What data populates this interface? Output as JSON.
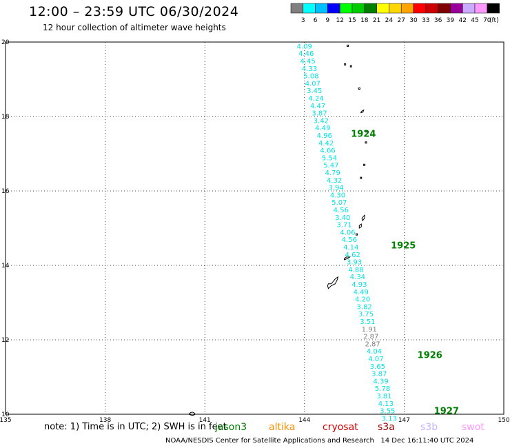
{
  "header": {
    "title": "12:00 – 23:59 UTC 06/30/2024",
    "subtitle": "12 hour collection of altimeter wave heights"
  },
  "colorbar": {
    "unit": "(ft)",
    "levels": [
      "3",
      "6",
      "9",
      "12",
      "15",
      "18",
      "21",
      "24",
      "27",
      "30",
      "33",
      "36",
      "39",
      "42",
      "45",
      "70"
    ],
    "colors": [
      "#808080",
      "#00ffff",
      "#00bfff",
      "#0000ff",
      "#00ff00",
      "#00cc00",
      "#008000",
      "#ffff00",
      "#ffd700",
      "#ffa500",
      "#ff0000",
      "#cc0000",
      "#800000",
      "#990099",
      "#ccaaff",
      "#ff99ff",
      "#000000"
    ]
  },
  "map": {
    "lon_ticks": [
      "135",
      "138",
      "141",
      "144",
      "147",
      "150"
    ],
    "lat_ticks": [
      "20",
      "18",
      "16",
      "14",
      "12",
      "10"
    ],
    "lon_range": [
      135,
      150
    ],
    "lat_range": [
      10,
      20
    ],
    "grid": "dotted"
  },
  "track": {
    "color": "#00e0e0",
    "anomaly_color": "#808080",
    "points": [
      {
        "label": "4.09",
        "lon": 144.0,
        "lat": 19.9
      },
      {
        "label": "4.46",
        "lon": 144.05,
        "lat": 19.7
      },
      {
        "label": "4.45",
        "lon": 144.1,
        "lat": 19.5
      },
      {
        "label": "4.33",
        "lon": 144.15,
        "lat": 19.3
      },
      {
        "label": "5.08",
        "lon": 144.2,
        "lat": 19.1
      },
      {
        "label": "4.07",
        "lon": 144.25,
        "lat": 18.9
      },
      {
        "label": "3.45",
        "lon": 144.3,
        "lat": 18.7
      },
      {
        "label": "4.24",
        "lon": 144.35,
        "lat": 18.5
      },
      {
        "label": "4.47",
        "lon": 144.4,
        "lat": 18.3
      },
      {
        "label": "3.87",
        "lon": 144.45,
        "lat": 18.1
      },
      {
        "label": "3.42",
        "lon": 144.5,
        "lat": 17.9
      },
      {
        "label": "4.49",
        "lon": 144.55,
        "lat": 17.7
      },
      {
        "label": "4.96",
        "lon": 144.6,
        "lat": 17.5
      },
      {
        "label": "4.42",
        "lon": 144.65,
        "lat": 17.3
      },
      {
        "label": "4.66",
        "lon": 144.7,
        "lat": 17.1
      },
      {
        "label": "5.54",
        "lon": 144.75,
        "lat": 16.9
      },
      {
        "label": "5.47",
        "lon": 144.8,
        "lat": 16.7
      },
      {
        "label": "4.79",
        "lon": 144.85,
        "lat": 16.5
      },
      {
        "label": "4.32",
        "lon": 144.9,
        "lat": 16.3
      },
      {
        "label": "3.94",
        "lon": 144.95,
        "lat": 16.1
      },
      {
        "label": "4.30",
        "lon": 145.0,
        "lat": 15.9
      },
      {
        "label": "5.07",
        "lon": 145.05,
        "lat": 15.7
      },
      {
        "label": "4.56",
        "lon": 145.1,
        "lat": 15.5
      },
      {
        "label": "3.40",
        "lon": 145.15,
        "lat": 15.3
      },
      {
        "label": "3.71",
        "lon": 145.2,
        "lat": 15.1
      },
      {
        "label": "4.06",
        "lon": 145.3,
        "lat": 14.9
      },
      {
        "label": "4.56",
        "lon": 145.35,
        "lat": 14.7
      },
      {
        "label": "4.14",
        "lon": 145.4,
        "lat": 14.5
      },
      {
        "label": "4.62",
        "lon": 145.45,
        "lat": 14.3
      },
      {
        "label": "3.93",
        "lon": 145.5,
        "lat": 14.1
      },
      {
        "label": "4.88",
        "lon": 145.55,
        "lat": 13.9
      },
      {
        "label": "4.34",
        "lon": 145.6,
        "lat": 13.7
      },
      {
        "label": "4.93",
        "lon": 145.65,
        "lat": 13.5
      },
      {
        "label": "4.49",
        "lon": 145.7,
        "lat": 13.3
      },
      {
        "label": "4.20",
        "lon": 145.75,
        "lat": 13.1
      },
      {
        "label": "3.82",
        "lon": 145.8,
        "lat": 12.9
      },
      {
        "label": "3.75",
        "lon": 145.85,
        "lat": 12.7
      },
      {
        "label": "3.51",
        "lon": 145.9,
        "lat": 12.5
      },
      {
        "label": "1.91",
        "lon": 145.95,
        "lat": 12.3,
        "anomaly": true
      },
      {
        "label": "2.87",
        "lon": 146.0,
        "lat": 12.1,
        "anomaly": true
      },
      {
        "label": "2.87",
        "lon": 146.05,
        "lat": 11.9,
        "anomaly": true
      },
      {
        "label": "4.04",
        "lon": 146.1,
        "lat": 11.7
      },
      {
        "label": "4.07",
        "lon": 146.15,
        "lat": 11.5
      },
      {
        "label": "3.65",
        "lon": 146.2,
        "lat": 11.3
      },
      {
        "label": "3.87",
        "lon": 146.25,
        "lat": 11.1
      },
      {
        "label": "4.39",
        "lon": 146.3,
        "lat": 10.9
      },
      {
        "label": "5.78",
        "lon": 146.35,
        "lat": 10.7
      },
      {
        "label": "3.81",
        "lon": 146.4,
        "lat": 10.5
      },
      {
        "label": "4.13",
        "lon": 146.45,
        "lat": 10.3
      },
      {
        "label": "3.55",
        "lon": 146.5,
        "lat": 10.1
      },
      {
        "label": "3.13",
        "lon": 146.55,
        "lat": 9.9
      }
    ]
  },
  "time_labels": {
    "color": "#008000",
    "items": [
      {
        "text": "1924",
        "lon": 145.4,
        "lat": 17.55
      },
      {
        "text": "1925",
        "lon": 146.6,
        "lat": 14.55
      },
      {
        "text": "1926",
        "lon": 147.4,
        "lat": 11.6
      },
      {
        "text": "1927",
        "lon": 147.9,
        "lat": 10.1
      }
    ]
  },
  "islands": [
    {
      "name": "farallon-de-pajaros",
      "lon": 145.3,
      "lat": 19.9
    },
    {
      "name": "maug",
      "lon": 145.22,
      "lat": 19.4
    },
    {
      "name": "asuncion",
      "lon": 145.4,
      "lat": 19.35
    },
    {
      "name": "agrihan",
      "lon": 145.65,
      "lat": 18.75
    },
    {
      "name": "pagan",
      "lon": 145.7,
      "lat": 18.1
    },
    {
      "name": "alamagan",
      "lon": 145.85,
      "lat": 17.6
    },
    {
      "name": "guguan",
      "lon": 145.85,
      "lat": 17.3
    },
    {
      "name": "sarigan",
      "lon": 145.8,
      "lat": 16.7
    },
    {
      "name": "anatahan",
      "lon": 145.7,
      "lat": 16.35
    },
    {
      "name": "saipan",
      "lon": 145.75,
      "lat": 15.2
    },
    {
      "name": "tinian",
      "lon": 145.65,
      "lat": 15.0
    },
    {
      "name": "aguijan",
      "lon": 145.55,
      "lat": 14.85
    },
    {
      "name": "rota",
      "lon": 145.2,
      "lat": 14.15
    },
    {
      "name": "guam",
      "lon": 144.8,
      "lat": 13.45
    },
    {
      "name": "fais",
      "lon": 140.52,
      "lat": 10.0
    }
  ],
  "footer": {
    "note": "note: 1) Time is in UTC; 2) SWH is in feet",
    "missions": [
      {
        "text": "jason3",
        "color": "#008000"
      },
      {
        "text": "altika",
        "color": "#ff8c00"
      },
      {
        "text": "cryosat",
        "color": "#dd0000"
      },
      {
        "text": "s3a",
        "color": "#990000"
      },
      {
        "text": "s3b",
        "color": "#c8b4ff"
      },
      {
        "text": "swot",
        "color": "#ff99ff"
      }
    ],
    "credit": "NOAA/NESDIS Center for Satellite Applications and Research   14 Dec 16:11:40 UTC 2024"
  }
}
